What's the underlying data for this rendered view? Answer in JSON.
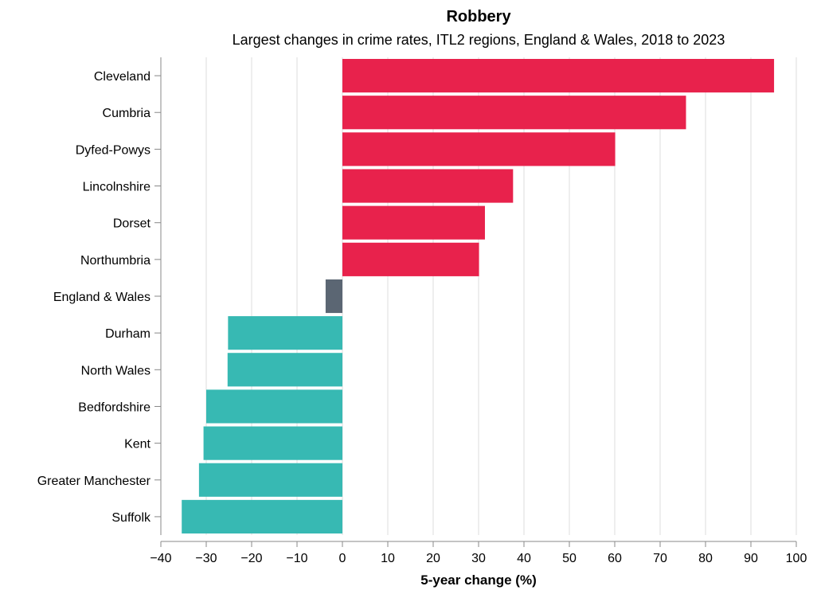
{
  "chart_data": {
    "type": "bar",
    "orientation": "horizontal",
    "title": "Robbery",
    "subtitle": "Largest changes in crime rates, ITL2 regions, England & Wales, 2018 to 2023",
    "xlabel": "5-year change (%)",
    "ylabel": "",
    "xlim": [
      -40,
      100
    ],
    "xticks": [
      -40,
      -30,
      -20,
      -10,
      0,
      10,
      20,
      30,
      40,
      50,
      60,
      70,
      80,
      90,
      100
    ],
    "grid": true,
    "categories": [
      "Cleveland",
      "Cumbria",
      "Dyfed-Powys",
      "Lincolnshire",
      "Dorset",
      "Northumbria",
      "England & Wales",
      "Durham",
      "North Wales",
      "Bedfordshire",
      "Kent",
      "Greater Manchester",
      "Suffolk"
    ],
    "values": [
      95.1,
      75.7,
      60.1,
      37.6,
      31.4,
      30.1,
      -3.7,
      -25.2,
      -25.3,
      -30,
      -30.6,
      -31.6,
      -35.4
    ],
    "colors": {
      "increase": "#e8224c",
      "national": "#5b6673",
      "decrease": "#37b9b3"
    }
  }
}
